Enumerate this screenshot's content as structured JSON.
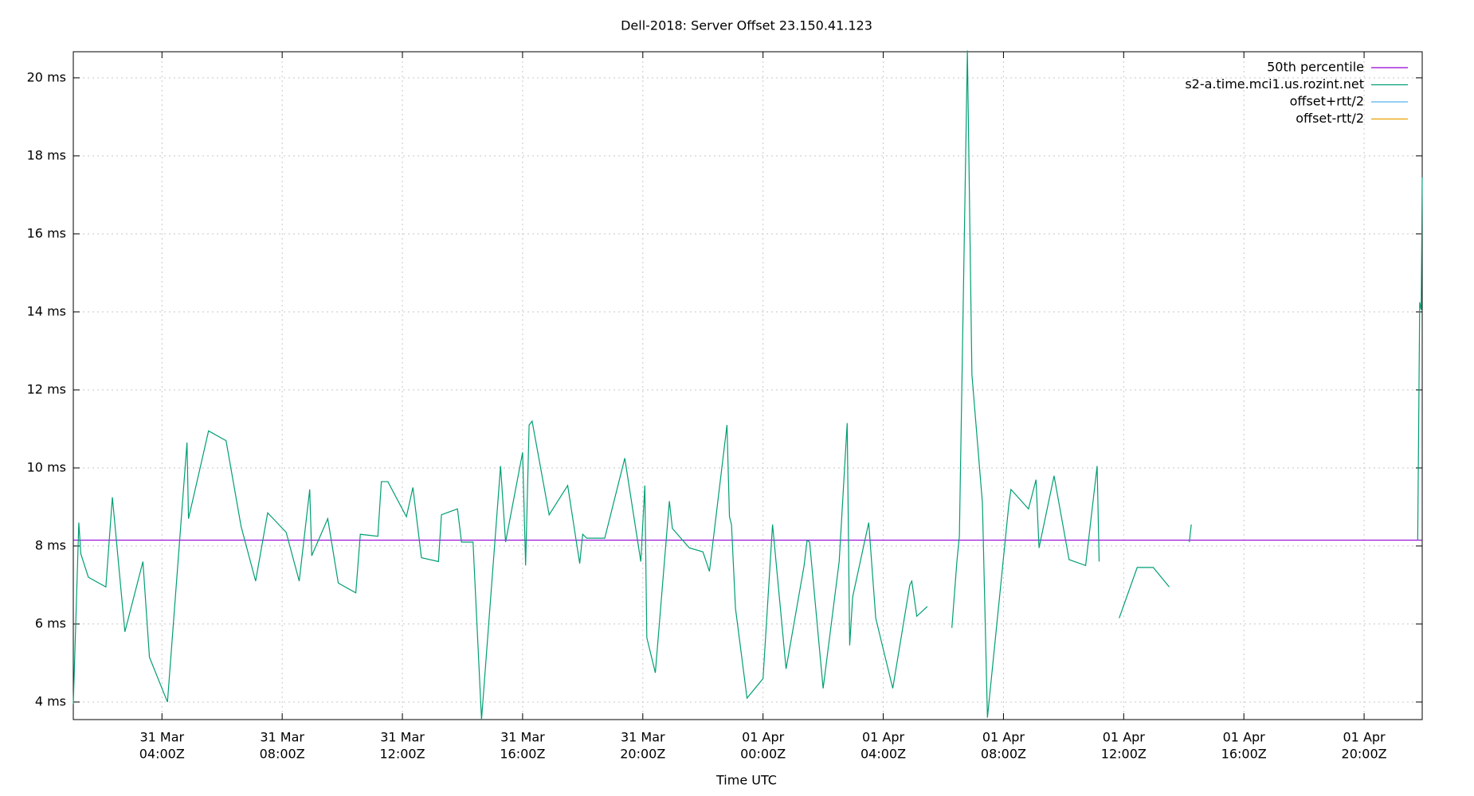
{
  "chart_data": {
    "type": "line",
    "title": "Dell-2018: Server Offset 23.150.41.123",
    "xlabel": "Time UTC",
    "xlim": [
      "31 Mar 01:03Z",
      "01 Apr 21:56Z"
    ],
    "ylim": [
      3.55,
      20.67
    ],
    "xticks": [
      {
        "value": "31 Mar 04:00Z",
        "label": [
          "31 Mar",
          "04:00Z"
        ]
      },
      {
        "value": "31 Mar 08:00Z",
        "label": [
          "31 Mar",
          "08:00Z"
        ]
      },
      {
        "value": "31 Mar 12:00Z",
        "label": [
          "31 Mar",
          "12:00Z"
        ]
      },
      {
        "value": "31 Mar 16:00Z",
        "label": [
          "31 Mar",
          "16:00Z"
        ]
      },
      {
        "value": "31 Mar 20:00Z",
        "label": [
          "31 Mar",
          "20:00Z"
        ]
      },
      {
        "value": "01 Apr 00:00Z",
        "label": [
          "01 Apr",
          "00:00Z"
        ]
      },
      {
        "value": "01 Apr 04:00Z",
        "label": [
          "01 Apr",
          "04:00Z"
        ]
      },
      {
        "value": "01 Apr 08:00Z",
        "label": [
          "01 Apr",
          "08:00Z"
        ]
      },
      {
        "value": "01 Apr 12:00Z",
        "label": [
          "01 Apr",
          "12:00Z"
        ]
      },
      {
        "value": "01 Apr 16:00Z",
        "label": [
          "01 Apr",
          "16:00Z"
        ]
      },
      {
        "value": "01 Apr 20:00Z",
        "label": [
          "01 Apr",
          "20:00Z"
        ]
      }
    ],
    "yticks": [
      {
        "value": 4,
        "label": "4 ms"
      },
      {
        "value": 6,
        "label": "6 ms"
      },
      {
        "value": 8,
        "label": "8 ms"
      },
      {
        "value": 10,
        "label": "10 ms"
      },
      {
        "value": 12,
        "label": "12 ms"
      },
      {
        "value": 14,
        "label": "14 ms"
      },
      {
        "value": 16,
        "label": "16 ms"
      },
      {
        "value": 18,
        "label": "18 ms"
      },
      {
        "value": 20,
        "label": "20 ms"
      }
    ],
    "grid": true,
    "legend": "top-right",
    "series": [
      {
        "name": "50th percentile",
        "color": "#9400d3",
        "x": [
          "31 Mar 01:03Z",
          "01 Apr 21:56Z"
        ],
        "values": [
          8.15,
          8.15
        ]
      },
      {
        "name": "s2-a.time.mci1.us.rozint.net",
        "color": "#009e73",
        "x": [
          "31 Mar 01:03Z",
          "31 Mar 01:14Z",
          "31 Mar 01:18Z",
          "31 Mar 01:33Z",
          "31 Mar 02:08Z",
          "31 Mar 02:21Z",
          "31 Mar 02:46Z",
          "31 Mar 03:22Z",
          "31 Mar 03:35Z",
          "31 Mar 04:11Z",
          "31 Mar 04:50Z",
          "31 Mar 04:53Z",
          "31 Mar 05:33Z",
          "31 Mar 06:08Z",
          "31 Mar 06:38Z",
          "31 Mar 07:07Z",
          "31 Mar 07:31Z",
          "31 Mar 08:08Z",
          "31 Mar 08:34Z",
          "31 Mar 08:55Z",
          "31 Mar 08:59Z",
          "31 Mar 09:31Z",
          "31 Mar 09:52Z",
          "31 Mar 10:27Z",
          "31 Mar 10:36Z",
          "31 Mar 11:11Z",
          "31 Mar 11:18Z",
          "31 Mar 11:31Z",
          "31 Mar 12:08Z",
          "31 Mar 12:21Z",
          "31 Mar 12:38Z",
          "31 Mar 13:12Z",
          "31 Mar 13:18Z",
          "31 Mar 13:50Z",
          "31 Mar 13:58Z",
          "31 Mar 14:21Z",
          "31 Mar 14:38Z",
          "31 Mar 15:16Z",
          "31 Mar 15:26Z",
          "31 Mar 16:00Z",
          "31 Mar 16:06Z",
          "31 Mar 16:13Z",
          "31 Mar 16:19Z",
          "31 Mar 16:53Z",
          "31 Mar 17:30Z",
          "31 Mar 17:54Z",
          "31 Mar 18:00Z",
          "31 Mar 18:08Z",
          "31 Mar 18:44Z",
          "31 Mar 19:24Z",
          "31 Mar 19:56Z",
          "31 Mar 20:04Z",
          "31 Mar 20:08Z",
          "31 Mar 20:25Z",
          "31 Mar 20:53Z",
          "31 Mar 20:59Z",
          "31 Mar 21:33Z",
          "31 Mar 22:00Z",
          "31 Mar 22:13Z",
          "31 Mar 22:48Z",
          "31 Mar 22:53Z",
          "31 Mar 22:57Z",
          "31 Mar 23:05Z",
          "31 Mar 23:28Z",
          "01 Apr 00:00Z",
          "01 Apr 00:19Z",
          "01 Apr 00:46Z",
          "01 Apr 01:22Z",
          "01 Apr 01:28Z",
          "01 Apr 01:33Z",
          "01 Apr 02:00Z",
          "01 Apr 02:32Z",
          "01 Apr 02:48Z",
          "01 Apr 02:53Z",
          "01 Apr 02:59Z",
          "01 Apr 03:31Z",
          "01 Apr 03:45Z",
          "01 Apr 04:19Z",
          "01 Apr 04:53Z",
          "01 Apr 04:57Z",
          "01 Apr 05:07Z",
          "01 Apr 05:28Z",
          "01 Apr 05:50Z",
          "01 Apr 06:17Z",
          "01 Apr 06:27Z",
          "01 Apr 06:32Z",
          "01 Apr 06:48Z",
          "01 Apr 06:57Z",
          "01 Apr 07:18Z",
          "01 Apr 07:28Z",
          "01 Apr 08:11Z",
          "01 Apr 08:15Z",
          "01 Apr 08:50Z",
          "01 Apr 09:05Z",
          "01 Apr 09:11Z",
          "01 Apr 09:41Z",
          "01 Apr 10:11Z",
          "01 Apr 10:44Z",
          "01 Apr 11:07Z",
          "01 Apr 11:11Z",
          "01 Apr 11:30Z",
          "01 Apr 11:51Z",
          "01 Apr 12:27Z",
          "01 Apr 12:59Z",
          "01 Apr 13:31Z",
          "01 Apr 13:50Z",
          "01 Apr 14:11Z",
          "01 Apr 14:15Z",
          "01 Apr 18:00Z",
          "01 Apr 21:47Z",
          "01 Apr 21:51Z",
          "01 Apr 21:54Z",
          "01 Apr 21:56Z"
        ],
        "values": [
          3.95,
          8.6,
          7.8,
          7.2,
          6.95,
          9.25,
          5.8,
          7.6,
          5.15,
          4.0,
          10.65,
          8.7,
          10.95,
          10.7,
          8.5,
          7.1,
          8.85,
          8.35,
          7.1,
          9.45,
          7.75,
          8.7,
          7.05,
          6.8,
          8.3,
          8.25,
          9.65,
          9.65,
          8.75,
          9.5,
          7.7,
          7.6,
          8.8,
          8.95,
          8.1,
          8.1,
          3.55,
          10.05,
          8.1,
          10.4,
          7.5,
          11.1,
          11.2,
          8.8,
          9.55,
          7.55,
          8.3,
          8.2,
          8.2,
          10.25,
          7.6,
          9.55,
          5.65,
          4.75,
          9.15,
          8.45,
          7.95,
          7.85,
          7.35,
          11.1,
          8.75,
          8.55,
          6.4,
          4.1,
          4.6,
          8.55,
          4.85,
          7.5,
          8.15,
          8.1,
          4.35,
          7.6,
          11.15,
          5.45,
          6.7,
          8.6,
          6.15,
          4.35,
          7.0,
          7.1,
          6.2,
          6.45,
          null,
          5.9,
          7.6,
          8.25,
          20.7,
          12.4,
          9.1,
          3.6,
          9.1,
          9.45,
          8.95,
          9.7,
          7.95,
          9.8,
          7.65,
          7.5,
          10.05,
          7.6,
          null,
          6.15,
          7.45,
          7.45,
          6.95,
          null,
          8.1,
          8.55,
          null,
          8.15,
          14.25,
          14.05,
          17.45
        ]
      },
      {
        "name": "offset+rtt/2",
        "color": "#56b4e9"
      },
      {
        "name": "offset-rtt/2",
        "color": "#e69f00"
      }
    ]
  }
}
